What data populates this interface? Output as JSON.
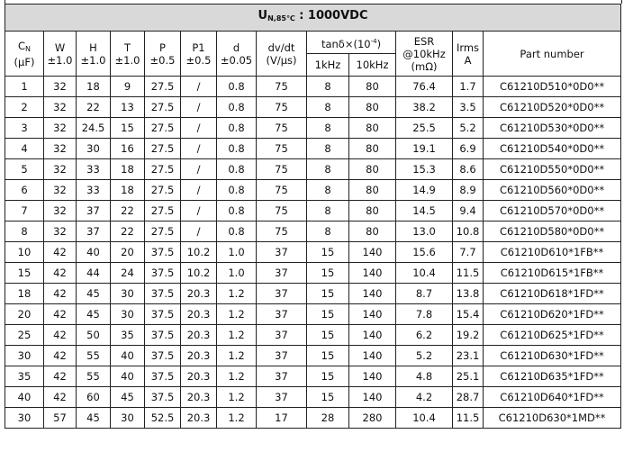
{
  "title": {
    "symbol": "U",
    "sub": "N,85℃",
    "rest": " : 1000VDC"
  },
  "headers": {
    "cn": {
      "symbol": "C",
      "sub": "N",
      "unit": "(μF)"
    },
    "w": {
      "name": "W",
      "tol": "±1.0"
    },
    "h": {
      "name": "H",
      "tol": "±1.0"
    },
    "t": {
      "name": "T",
      "tol": "±1.0"
    },
    "p": {
      "name": "P",
      "tol": "±0.5"
    },
    "p1": {
      "name": "P1",
      "tol": "±0.5"
    },
    "d": {
      "name": "d",
      "tol": "±0.05"
    },
    "dvdt": {
      "name": "dv/dt",
      "unit": "(V/μs)"
    },
    "tan": {
      "name": "tanδ×(10",
      "exp": "-4",
      "close": ")",
      "f1": "1kHz",
      "f2": "10kHz"
    },
    "esr": {
      "name": "ESR",
      "cond": "@10kHz",
      "unit": "(mΩ)"
    },
    "irms": {
      "name": "Irms",
      "unit": "A"
    },
    "part": "Part number"
  },
  "rows": [
    [
      "1",
      "32",
      "18",
      "9",
      "27.5",
      "/",
      "0.8",
      "75",
      "8",
      "80",
      "76.4",
      "1.7",
      "C61210D510*0D0**"
    ],
    [
      "2",
      "32",
      "22",
      "13",
      "27.5",
      "/",
      "0.8",
      "75",
      "8",
      "80",
      "38.2",
      "3.5",
      "C61210D520*0D0**"
    ],
    [
      "3",
      "32",
      "24.5",
      "15",
      "27.5",
      "/",
      "0.8",
      "75",
      "8",
      "80",
      "25.5",
      "5.2",
      "C61210D530*0D0**"
    ],
    [
      "4",
      "32",
      "30",
      "16",
      "27.5",
      "/",
      "0.8",
      "75",
      "8",
      "80",
      "19.1",
      "6.9",
      "C61210D540*0D0**"
    ],
    [
      "5",
      "32",
      "33",
      "18",
      "27.5",
      "/",
      "0.8",
      "75",
      "8",
      "80",
      "15.3",
      "8.6",
      "C61210D550*0D0**"
    ],
    [
      "6",
      "32",
      "33",
      "18",
      "27.5",
      "/",
      "0.8",
      "75",
      "8",
      "80",
      "14.9",
      "8.9",
      "C61210D560*0D0**"
    ],
    [
      "7",
      "32",
      "37",
      "22",
      "27.5",
      "/",
      "0.8",
      "75",
      "8",
      "80",
      "14.5",
      "9.4",
      "C61210D570*0D0**"
    ],
    [
      "8",
      "32",
      "37",
      "22",
      "27.5",
      "/",
      "0.8",
      "75",
      "8",
      "80",
      "13.0",
      "10.8",
      "C61210D580*0D0**"
    ],
    [
      "10",
      "42",
      "40",
      "20",
      "37.5",
      "10.2",
      "1.0",
      "37",
      "15",
      "140",
      "15.6",
      "7.7",
      "C61210D610*1FB**"
    ],
    [
      "15",
      "42",
      "44",
      "24",
      "37.5",
      "10.2",
      "1.0",
      "37",
      "15",
      "140",
      "10.4",
      "11.5",
      "C61210D615*1FB**"
    ],
    [
      "18",
      "42",
      "45",
      "30",
      "37.5",
      "20.3",
      "1.2",
      "37",
      "15",
      "140",
      "8.7",
      "13.8",
      "C61210D618*1FD**"
    ],
    [
      "20",
      "42",
      "45",
      "30",
      "37.5",
      "20.3",
      "1.2",
      "37",
      "15",
      "140",
      "7.8",
      "15.4",
      "C61210D620*1FD**"
    ],
    [
      "25",
      "42",
      "50",
      "35",
      "37.5",
      "20.3",
      "1.2",
      "37",
      "15",
      "140",
      "6.2",
      "19.2",
      "C61210D625*1FD**"
    ],
    [
      "30",
      "42",
      "55",
      "40",
      "37.5",
      "20.3",
      "1.2",
      "37",
      "15",
      "140",
      "5.2",
      "23.1",
      "C61210D630*1FD**"
    ],
    [
      "35",
      "42",
      "55",
      "40",
      "37.5",
      "20.3",
      "1.2",
      "37",
      "15",
      "140",
      "4.8",
      "25.1",
      "C61210D635*1FD**"
    ],
    [
      "40",
      "42",
      "60",
      "45",
      "37.5",
      "20.3",
      "1.2",
      "37",
      "15",
      "140",
      "4.2",
      "28.7",
      "C61210D640*1FD**"
    ],
    [
      "30",
      "57",
      "45",
      "30",
      "52.5",
      "20.3",
      "1.2",
      "17",
      "28",
      "280",
      "10.4",
      "11.5",
      "C61210D630*1MD**"
    ]
  ]
}
